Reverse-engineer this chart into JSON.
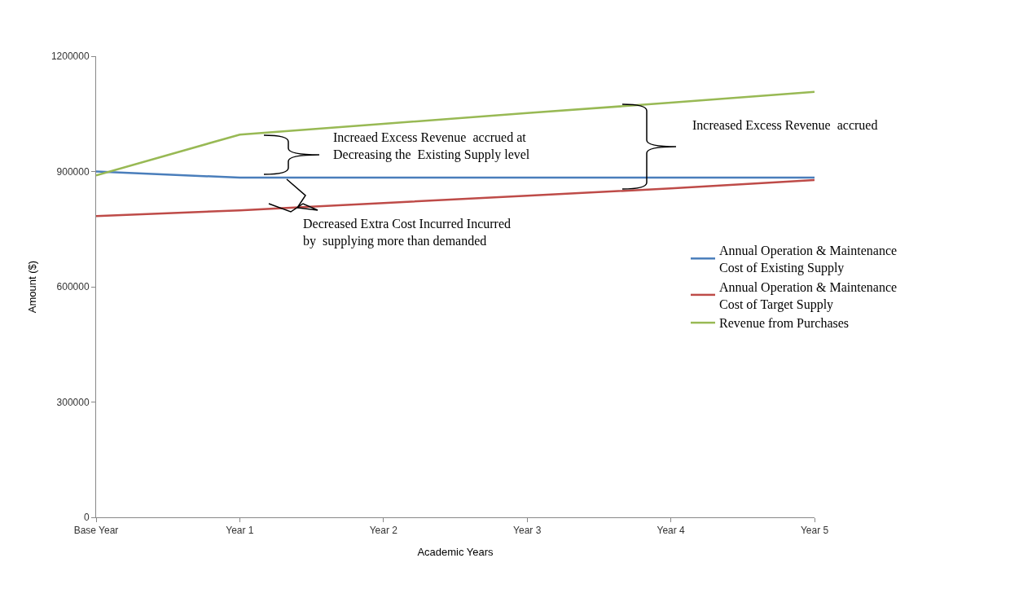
{
  "chart_data": {
    "type": "line",
    "categories": [
      "Base Year",
      "Year 1",
      "Year 2",
      "Year 3",
      "Year 4",
      "Year 5"
    ],
    "series": [
      {
        "name": "Annual Operation & Maintenance Cost of Existing Supply",
        "color": "#4a7ebb",
        "values": [
          900000,
          884000,
          884000,
          884000,
          884000,
          884000
        ]
      },
      {
        "name": "Annual Operation & Maintenance Cost of Target Supply",
        "color": "#be4b48",
        "values": [
          784000,
          799000,
          818000,
          837000,
          856000,
          878000
        ]
      },
      {
        "name": "Revenue from Purchases",
        "color": "#98b954",
        "values": [
          890000,
          996000,
          1024000,
          1052000,
          1079000,
          1107000
        ]
      }
    ],
    "xlabel": "Academic Years",
    "ylabel": "Amount ($)",
    "ylim": [
      0,
      1200000
    ],
    "yticks": [
      0,
      300000,
      600000,
      900000,
      1200000
    ],
    "annotations": [
      "Increaed Excess Revenue  accrued at\nDecreasing the  Existing Supply level",
      "Increased Excess Revenue  accrued",
      "Decreased Extra Cost Incurred Incurred\nby  supplying more than demanded"
    ],
    "legend": "right",
    "marker": "none",
    "line_style": "solid"
  }
}
